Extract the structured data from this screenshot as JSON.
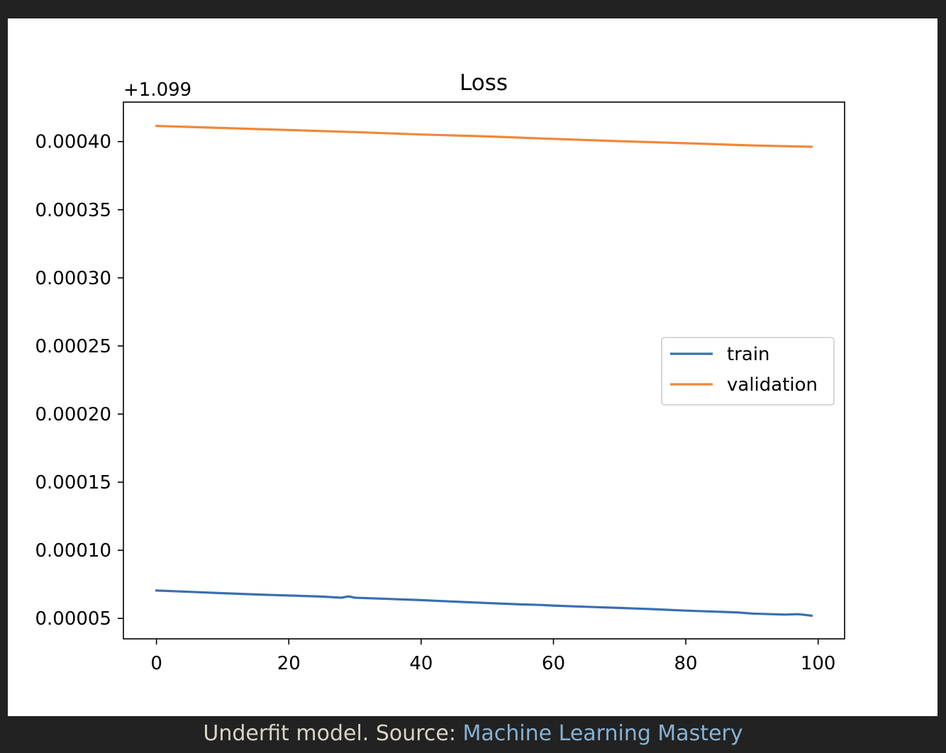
{
  "caption": {
    "text": "Underfit model. Source: ",
    "link_text": "Machine Learning Mastery"
  },
  "colors": {
    "train": "#3a6fb0",
    "validation": "#f0883a",
    "page_background": "#222222",
    "caption_link": "#86b2d4"
  },
  "chart_data": {
    "type": "line",
    "title": "Loss",
    "xlabel": "",
    "ylabel": "",
    "offset_label": "+1.099",
    "y_offset": 1.099,
    "xlim": [
      -5,
      104
    ],
    "ylim": [
      3.5e-05,
      0.000429
    ],
    "xticks": [
      0,
      20,
      40,
      60,
      80,
      100
    ],
    "xtick_labels": [
      "0",
      "20",
      "40",
      "60",
      "80",
      "100"
    ],
    "yticks": [
      5e-05,
      0.0001,
      0.00015,
      0.0002,
      0.00025,
      0.0003,
      0.00035,
      0.0004
    ],
    "ytick_labels": [
      "0.00005",
      "0.00010",
      "0.00015",
      "0.00020",
      "0.00025",
      "0.00030",
      "0.00035",
      "0.00040"
    ],
    "grid": false,
    "legend_position": "center-right",
    "series": [
      {
        "name": "train",
        "color": "#3a6fb0",
        "x": [
          0,
          5,
          10,
          15,
          20,
          25,
          28,
          29,
          30,
          35,
          40,
          45,
          50,
          55,
          58,
          60,
          65,
          70,
          75,
          80,
          85,
          88,
          90,
          95,
          97,
          99
        ],
        "y": [
          7.05e-05,
          6.95e-05,
          6.85e-05,
          6.76e-05,
          6.68e-05,
          6.6e-05,
          6.52e-05,
          6.62e-05,
          6.52e-05,
          6.43e-05,
          6.34e-05,
          6.23e-05,
          6.13e-05,
          6.03e-05,
          5.99e-05,
          5.94e-05,
          5.85e-05,
          5.77e-05,
          5.68e-05,
          5.57e-05,
          5.49e-05,
          5.43e-05,
          5.36e-05,
          5.28e-05,
          5.31e-05,
          5.2e-05
        ]
      },
      {
        "name": "validation",
        "color": "#f0883a",
        "x": [
          0,
          10,
          20,
          30,
          40,
          50,
          60,
          70,
          80,
          90,
          99
        ],
        "y": [
          0.0004115,
          0.00041,
          0.0004085,
          0.000407,
          0.0004052,
          0.0004038,
          0.000402,
          0.0004003,
          0.0003988,
          0.0003972,
          0.0003962
        ]
      }
    ]
  }
}
